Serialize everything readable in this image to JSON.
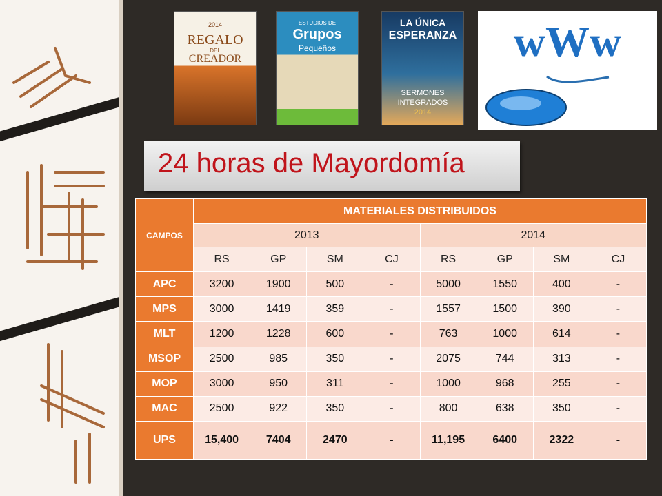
{
  "title": "24 horas de Mayordomía",
  "thumbnails": {
    "book1": {
      "label": "Regalo del Creador",
      "lines": [
        "2014",
        "REGALO",
        "DEL",
        "CREADOR"
      ]
    },
    "book2": {
      "label": "Estudios de Grupos Pequeños",
      "lines": [
        "ESTUDIOS DE",
        "Grupos",
        "Pequeños"
      ]
    },
    "book3": {
      "label": "La Única Esperanza - Sermones Integrados 2014",
      "lines": [
        "LA ÚNICA",
        "ESPERANZA",
        "SERMONES",
        "INTEGRADOS",
        "2014"
      ]
    },
    "www": {
      "label": "www",
      "text": "wWw"
    }
  },
  "table": {
    "campos_label": "CAMPOS",
    "materiales_label": "MATERIALES DISTRIBUIDOS",
    "years": [
      "2013",
      "2014"
    ],
    "sub_headers": [
      "RS",
      "GP",
      "SM",
      "CJ",
      "RS",
      "GP",
      "SM",
      "CJ"
    ],
    "rows": [
      {
        "campo": "APC",
        "values": [
          "3200",
          "1900",
          "500",
          "-",
          "5000",
          "1550",
          "400",
          "-"
        ]
      },
      {
        "campo": "MPS",
        "values": [
          "3000",
          "1419",
          "359",
          "-",
          "1557",
          "1500",
          "390",
          "-"
        ]
      },
      {
        "campo": "MLT",
        "values": [
          "1200",
          "1228",
          "600",
          "-",
          "763",
          "1000",
          "614",
          "-"
        ]
      },
      {
        "campo": "MSOP",
        "values": [
          "2500",
          "985",
          "350",
          "-",
          "2075",
          "744",
          "313",
          "-"
        ]
      },
      {
        "campo": "MOP",
        "values": [
          "3000",
          "950",
          "311",
          "-",
          "1000",
          "968",
          "255",
          "-"
        ]
      },
      {
        "campo": "MAC",
        "values": [
          "2500",
          "922",
          "350",
          "-",
          "800",
          "638",
          "350",
          "-"
        ]
      },
      {
        "campo": "UPS",
        "values": [
          "15,400",
          "7404",
          "2470",
          "-",
          "11,195",
          "6400",
          "2322",
          "-"
        ],
        "total": true
      }
    ]
  },
  "colors": {
    "accent": "#ea7a2f",
    "title": "#c0141b",
    "background": "#2e2a26"
  }
}
